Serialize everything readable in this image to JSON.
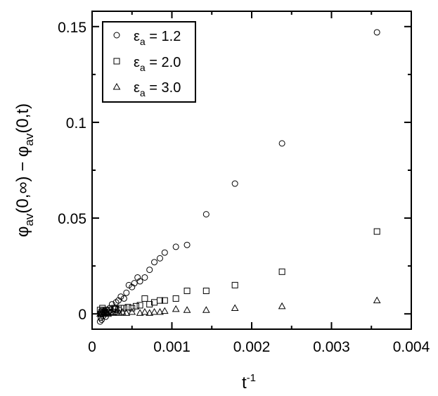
{
  "chart_data": {
    "type": "scatter",
    "x_axis": {
      "label_main": "t",
      "label_sup": "-1",
      "range": [
        0,
        0.004
      ],
      "ticks": [
        0,
        0.001,
        0.002,
        0.003,
        0.004
      ],
      "tick_labels": [
        "0",
        "0.001",
        "0.002",
        "0.003",
        "0.004"
      ]
    },
    "y_axis": {
      "label_parts": [
        "φ",
        "av",
        "(0,∞) − φ",
        "av",
        "(0,t)"
      ],
      "range": [
        -0.008,
        0.158
      ],
      "ticks": [
        0,
        0.05,
        0.1,
        0.15
      ],
      "tick_labels": [
        "0",
        "0.05",
        "0.1",
        "0.15"
      ]
    },
    "grid": false,
    "legend_position": "top-left",
    "series": [
      {
        "name": "ε",
        "name_sub": "a",
        "name_value": " = 1.2",
        "marker": "circle",
        "points": [
          [
            0.0001,
            -0.004
          ],
          [
            0.00011,
            -0.002
          ],
          [
            0.00012,
            -0.003
          ],
          [
            0.00013,
            0.0
          ],
          [
            0.00014,
            -0.001
          ],
          [
            0.00015,
            0.001
          ],
          [
            0.00016,
            0.0005
          ],
          [
            0.00017,
            -0.0015
          ],
          [
            0.00018,
            0.002
          ],
          [
            0.0002,
            0.001
          ],
          [
            0.00022,
            0.003
          ],
          [
            0.00025,
            0.005
          ],
          [
            0.00028,
            0.003
          ],
          [
            0.0003,
            0.006
          ],
          [
            0.00033,
            0.007
          ],
          [
            0.00036,
            0.009
          ],
          [
            0.0004,
            0.008
          ],
          [
            0.00043,
            0.011
          ],
          [
            0.00046,
            0.015
          ],
          [
            0.0005,
            0.014
          ],
          [
            0.00053,
            0.016
          ],
          [
            0.00057,
            0.019
          ],
          [
            0.0006,
            0.017
          ],
          [
            0.00066,
            0.019
          ],
          [
            0.00072,
            0.023
          ],
          [
            0.00078,
            0.027
          ],
          [
            0.00085,
            0.029
          ],
          [
            0.00091,
            0.032
          ],
          [
            0.00105,
            0.035
          ],
          [
            0.00119,
            0.036
          ],
          [
            0.00143,
            0.052
          ],
          [
            0.00179,
            0.068
          ],
          [
            0.00238,
            0.089
          ],
          [
            0.00357,
            0.147
          ]
        ]
      },
      {
        "name": "ε",
        "name_sub": "a",
        "name_value": " = 2.0",
        "marker": "square",
        "points": [
          [
            0.0001,
            0.002
          ],
          [
            0.00011,
            0.0
          ],
          [
            0.00012,
            0.001
          ],
          [
            0.00013,
            0.003
          ],
          [
            0.00014,
            0.0015
          ],
          [
            0.00016,
            0.0005
          ],
          [
            0.00018,
            0.002
          ],
          [
            0.0002,
            0.001
          ],
          [
            0.00022,
            0.002
          ],
          [
            0.00025,
            0.001
          ],
          [
            0.00028,
            0.003
          ],
          [
            0.0003,
            0.0025
          ],
          [
            0.00033,
            0.002
          ],
          [
            0.00036,
            0.003
          ],
          [
            0.0004,
            0.003
          ],
          [
            0.00045,
            0.0035
          ],
          [
            0.0005,
            0.003
          ],
          [
            0.00055,
            0.004
          ],
          [
            0.0006,
            0.0045
          ],
          [
            0.00066,
            0.008
          ],
          [
            0.00072,
            0.005
          ],
          [
            0.00078,
            0.006
          ],
          [
            0.00085,
            0.007
          ],
          [
            0.00091,
            0.007
          ],
          [
            0.00105,
            0.008
          ],
          [
            0.00119,
            0.012
          ],
          [
            0.00143,
            0.012
          ],
          [
            0.00179,
            0.015
          ],
          [
            0.00238,
            0.022
          ],
          [
            0.00357,
            0.043
          ]
        ]
      },
      {
        "name": "ε",
        "name_sub": "a",
        "name_value": " = 3.0",
        "marker": "triangle",
        "points": [
          [
            0.0001,
            0.0
          ],
          [
            0.00012,
            0.0005
          ],
          [
            0.00014,
            0.0
          ],
          [
            0.00016,
            0.001
          ],
          [
            0.00018,
            0.0005
          ],
          [
            0.0002,
            0.0
          ],
          [
            0.00023,
            0.001
          ],
          [
            0.00026,
            0.0005
          ],
          [
            0.0003,
            0.001
          ],
          [
            0.00034,
            0.0005
          ],
          [
            0.00038,
            0.001
          ],
          [
            0.00043,
            0.0005
          ],
          [
            0.0005,
            0.001
          ],
          [
            0.0006,
            0.0005
          ],
          [
            0.00066,
            0.001
          ],
          [
            0.00072,
            0.0005
          ],
          [
            0.00078,
            0.001
          ],
          [
            0.00085,
            0.001
          ],
          [
            0.00091,
            0.0015
          ],
          [
            0.00105,
            0.0025
          ],
          [
            0.00119,
            0.002
          ],
          [
            0.00143,
            0.002
          ],
          [
            0.00179,
            0.003
          ],
          [
            0.00238,
            0.004
          ],
          [
            0.00357,
            0.007
          ]
        ]
      }
    ]
  }
}
